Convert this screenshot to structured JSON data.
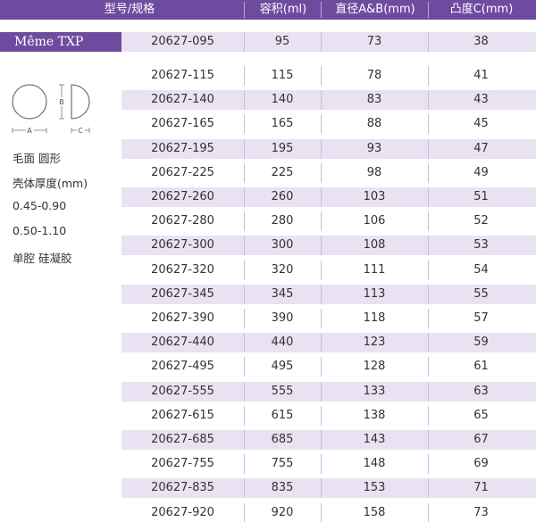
{
  "header": {
    "col_model": "型号/规格",
    "col_volume": "容积(ml)",
    "col_diameter": "直径A&B(mm)",
    "col_projection": "凸度C(mm)"
  },
  "brand": "Même TXP",
  "diagram": {
    "label_a": "A",
    "label_b": "B",
    "label_c": "C"
  },
  "specs": [
    "毛面 圆形",
    "壳体厚度(mm)",
    "0.45-0.90",
    "0.50-1.10",
    "单腔 硅凝胶"
  ],
  "rows": [
    {
      "model": "20627-095",
      "volume": "95",
      "diameter": "73",
      "projection": "38"
    },
    {
      "model": "20627-115",
      "volume": "115",
      "diameter": "78",
      "projection": "41"
    },
    {
      "model": "20627-140",
      "volume": "140",
      "diameter": "83",
      "projection": "43"
    },
    {
      "model": "20627-165",
      "volume": "165",
      "diameter": "88",
      "projection": "45"
    },
    {
      "model": "20627-195",
      "volume": "195",
      "diameter": "93",
      "projection": "47"
    },
    {
      "model": "20627-225",
      "volume": "225",
      "diameter": "98",
      "projection": "49"
    },
    {
      "model": "20627-260",
      "volume": "260",
      "diameter": "103",
      "projection": "51"
    },
    {
      "model": "20627-280",
      "volume": "280",
      "diameter": "106",
      "projection": "52"
    },
    {
      "model": "20627-300",
      "volume": "300",
      "diameter": "108",
      "projection": "53"
    },
    {
      "model": "20627-320",
      "volume": "320",
      "diameter": "111",
      "projection": "54"
    },
    {
      "model": "20627-345",
      "volume": "345",
      "diameter": "113",
      "projection": "55"
    },
    {
      "model": "20627-390",
      "volume": "390",
      "diameter": "118",
      "projection": "57"
    },
    {
      "model": "20627-440",
      "volume": "440",
      "diameter": "123",
      "projection": "59"
    },
    {
      "model": "20627-495",
      "volume": "495",
      "diameter": "128",
      "projection": "61"
    },
    {
      "model": "20627-555",
      "volume": "555",
      "diameter": "133",
      "projection": "63"
    },
    {
      "model": "20627-615",
      "volume": "615",
      "diameter": "138",
      "projection": "65"
    },
    {
      "model": "20627-685",
      "volume": "685",
      "diameter": "143",
      "projection": "67"
    },
    {
      "model": "20627-755",
      "volume": "755",
      "diameter": "148",
      "projection": "69"
    },
    {
      "model": "20627-835",
      "volume": "835",
      "diameter": "153",
      "projection": "71"
    },
    {
      "model": "20627-920",
      "volume": "920",
      "diameter": "158",
      "projection": "73"
    }
  ],
  "colors": {
    "accent": "#6f4ba0",
    "row_shade": "#e9e2f2"
  }
}
